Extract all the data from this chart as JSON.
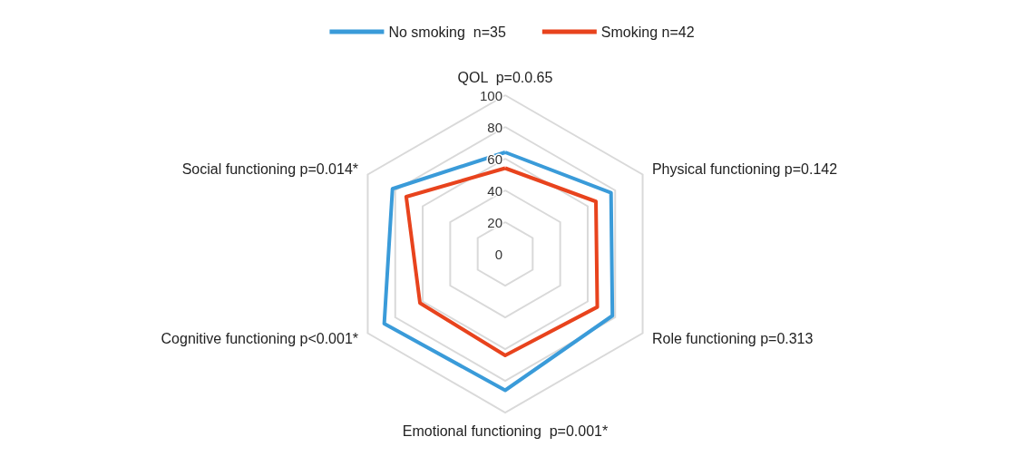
{
  "chart_data": {
    "type": "radar",
    "categories": [
      "QOL  p=0.0.65",
      "Physical functioning p=0.142",
      "Role functioning p=0.313",
      "Emotional functioning  p=0.001*",
      "Cognitive functioning p<0.001*",
      "Social functioning p=0.014*"
    ],
    "series": [
      {
        "name": "No smoking  n=35",
        "color": "#3a9bd9",
        "values": [
          64,
          77,
          78,
          86,
          88,
          82
        ]
      },
      {
        "name": "Smoking n=42",
        "color": "#e8431d",
        "values": [
          54,
          66,
          67,
          64,
          62,
          72
        ]
      }
    ],
    "ylim": [
      0,
      100
    ],
    "yticks": [
      0,
      20,
      40,
      60,
      80,
      100
    ],
    "legend": "top",
    "marker": "none",
    "line_style": "solid"
  }
}
